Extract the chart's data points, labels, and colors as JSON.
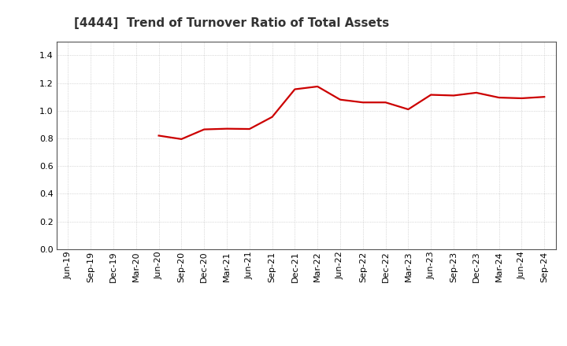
{
  "title": "[4444]  Trend of Turnover Ratio of Total Assets",
  "title_fontsize": 11,
  "title_fontweight": "bold",
  "title_color": "#333333",
  "line_color": "#cc0000",
  "line_width": 1.6,
  "background_color": "#ffffff",
  "grid_color": "#bbbbbb",
  "grid_linestyle": ":",
  "grid_linewidth": 0.5,
  "spine_color": "#555555",
  "spine_linewidth": 0.8,
  "ylim": [
    0.0,
    1.5
  ],
  "yticks": [
    0.0,
    0.2,
    0.4,
    0.6,
    0.8,
    1.0,
    1.2,
    1.4
  ],
  "tick_fontsize": 8,
  "x_labels": [
    "Jun-19",
    "Sep-19",
    "Dec-19",
    "Mar-20",
    "Jun-20",
    "Sep-20",
    "Dec-20",
    "Mar-21",
    "Jun-21",
    "Sep-21",
    "Dec-21",
    "Mar-22",
    "Jun-22",
    "Sep-22",
    "Dec-22",
    "Mar-23",
    "Jun-23",
    "Sep-23",
    "Dec-23",
    "Mar-24",
    "Jun-24",
    "Sep-24"
  ],
  "values": [
    null,
    null,
    null,
    null,
    0.82,
    0.795,
    0.865,
    0.87,
    0.868,
    0.955,
    1.155,
    1.175,
    1.08,
    1.06,
    1.06,
    1.01,
    1.115,
    1.11,
    1.13,
    1.095,
    1.09,
    1.1
  ]
}
